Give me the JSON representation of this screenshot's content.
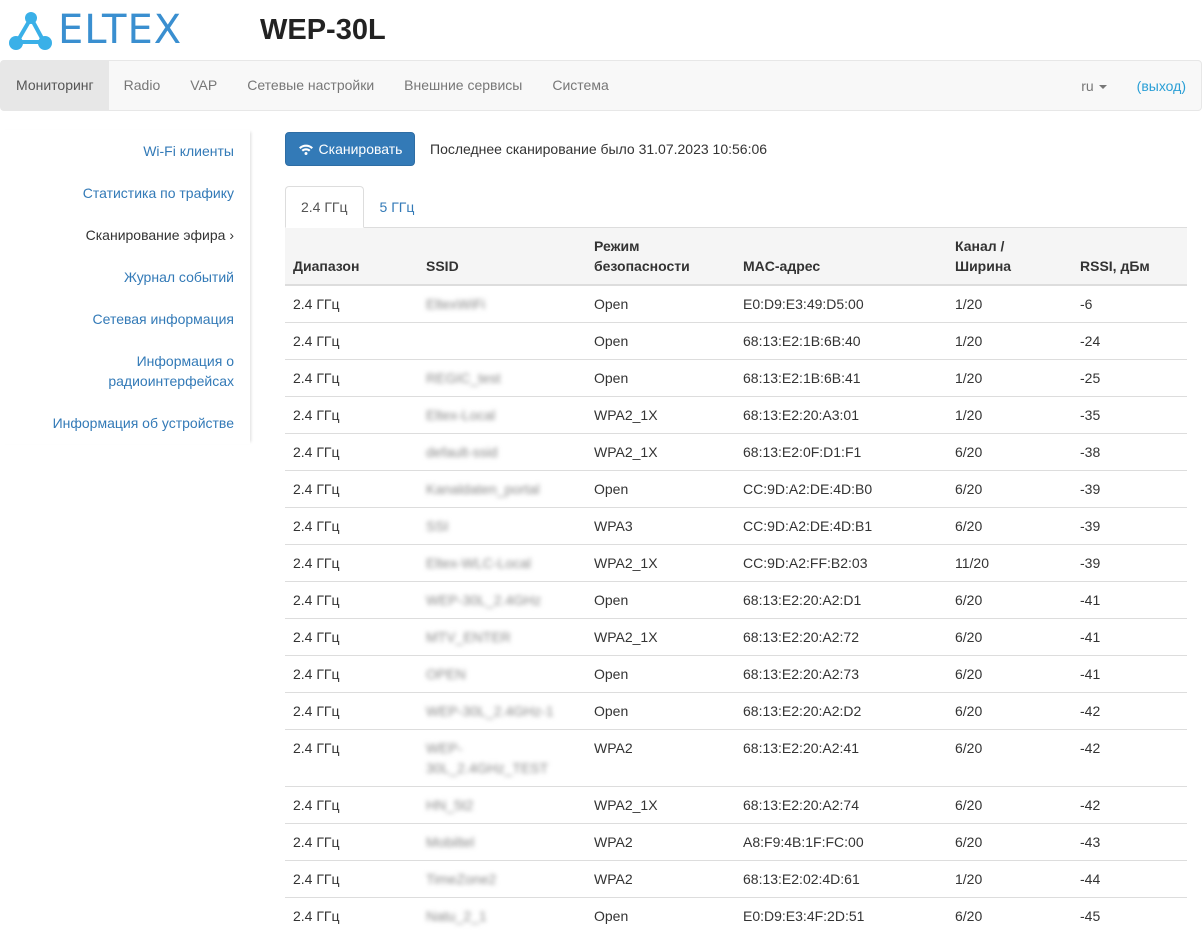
{
  "header": {
    "logo_text": "ELTEX",
    "title": "WEP-30L"
  },
  "nav": {
    "items": [
      "Мониторинг",
      "Radio",
      "VAP",
      "Сетевые настройки",
      "Внешние сервисы",
      "Система"
    ],
    "lang": "ru",
    "logout": "(выход)"
  },
  "sidebar": {
    "items": [
      "Wi-Fi клиенты",
      "Статистика по трафику",
      "Сканирование эфира ›",
      "Журнал событий",
      "Сетевая информация",
      "Информация о радиоинтерфейсах",
      "Информация об устройстве"
    ],
    "active": 2
  },
  "scan": {
    "button": "Сканировать",
    "last_scan": "Последнее сканирование было 31.07.2023 10:56:06",
    "icon": "wifi-icon"
  },
  "tabs": [
    "2.4 ГГц",
    "5 ГГц"
  ],
  "table": {
    "headers": [
      "Диапазон",
      "SSID",
      "Режим безопасности",
      "MAC-адрес",
      "Канал / Ширина",
      "RSSI, дБм"
    ],
    "rows": [
      [
        "2.4 ГГц",
        "EltexWiFi",
        "Open",
        "E0:D9:E3:49:D5:00",
        "1/20",
        "-6"
      ],
      [
        "2.4 ГГц",
        "",
        "Open",
        "68:13:E2:1B:6B:40",
        "1/20",
        "-24"
      ],
      [
        "2.4 ГГц",
        "REGIC_test",
        "Open",
        "68:13:E2:1B:6B:41",
        "1/20",
        "-25"
      ],
      [
        "2.4 ГГц",
        "Eltex-Local",
        "WPA2_1X",
        "68:13:E2:20:A3:01",
        "1/20",
        "-35"
      ],
      [
        "2.4 ГГц",
        "default-ssid",
        "WPA2_1X",
        "68:13:E2:0F:D1:F1",
        "6/20",
        "-38"
      ],
      [
        "2.4 ГГц",
        "Kanaldaten_portal",
        "Open",
        "CC:9D:A2:DE:4D:B0",
        "6/20",
        "-39"
      ],
      [
        "2.4 ГГц",
        "SSI",
        "WPA3",
        "CC:9D:A2:DE:4D:B1",
        "6/20",
        "-39"
      ],
      [
        "2.4 ГГц",
        "Eltex-WLC-Local",
        "WPA2_1X",
        "CC:9D:A2:FF:B2:03",
        "11/20",
        "-39"
      ],
      [
        "2.4 ГГц",
        "WEP-30L_2.4GHz",
        "Open",
        "68:13:E2:20:A2:D1",
        "6/20",
        "-41"
      ],
      [
        "2.4 ГГц",
        "MTV_ENTER",
        "WPA2_1X",
        "68:13:E2:20:A2:72",
        "6/20",
        "-41"
      ],
      [
        "2.4 ГГц",
        "OPEN",
        "Open",
        "68:13:E2:20:A2:73",
        "6/20",
        "-41"
      ],
      [
        "2.4 ГГц",
        "WEP-30L_2.4GHz-1",
        "Open",
        "68:13:E2:20:A2:D2",
        "6/20",
        "-42"
      ],
      [
        "2.4 ГГц",
        "WEP-30L_2.4GHz_TEST",
        "WPA2",
        "68:13:E2:20:A2:41",
        "6/20",
        "-42"
      ],
      [
        "2.4 ГГц",
        "HN_5t2",
        "WPA2_1X",
        "68:13:E2:20:A2:74",
        "6/20",
        "-42"
      ],
      [
        "2.4 ГГц",
        "Mobiltel",
        "WPA2",
        "A8:F9:4B:1F:FC:00",
        "6/20",
        "-43"
      ],
      [
        "2.4 ГГц",
        "TimeZone2",
        "WPA2",
        "68:13:E2:02:4D:61",
        "1/20",
        "-44"
      ],
      [
        "2.4 ГГц",
        "Natu_2_1",
        "Open",
        "E0:D9:E3:4F:2D:51",
        "6/20",
        "-45"
      ]
    ]
  },
  "colors": {
    "accent": "#337ab7",
    "logo": "#3a8fd0",
    "logout": "#2a9fd6"
  }
}
